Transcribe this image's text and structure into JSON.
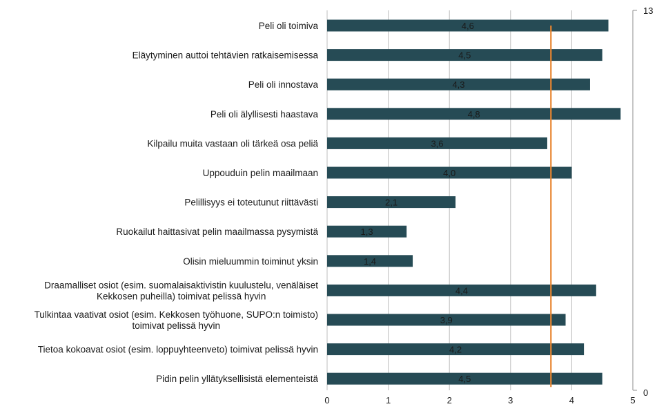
{
  "chart_data": {
    "type": "bar",
    "orientation": "horizontal",
    "categories": [
      [
        "Peli oli toimiva"
      ],
      [
        "Eläytyminen auttoi tehtävien ratkaisemisessa"
      ],
      [
        "Peli oli innostava"
      ],
      [
        "Peli oli älyllisesti haastava"
      ],
      [
        "Kilpailu muita vastaan oli tärkeä osa peliä"
      ],
      [
        "Uppouduin pelin maailmaan"
      ],
      [
        "Pelillisyys ei toteutunut riittävästi"
      ],
      [
        "Ruokailut haittasivat pelin maailmassa pysymistä"
      ],
      [
        "Olisin mieluummin toiminut yksin"
      ],
      [
        "Draamalliset osiot (esim. suomalaisaktivistin kuulustelu, venäläiset",
        "Kekkosen puheilla) toimivat pelissä hyvin"
      ],
      [
        "Tulkintaa vaativat osiot (esim. Kekkosen työhuone, SUPO:n toimisto)",
        "toimivat pelissä hyvin"
      ],
      [
        "Tietoa kokoavat osiot (esim. loppuyhteenveto) toimivat pelissä hyvin"
      ],
      [
        "Pidin pelin yllätyksellisistä elementeistä"
      ]
    ],
    "values": [
      4.6,
      4.5,
      4.3,
      4.8,
      3.6,
      4.0,
      2.1,
      1.3,
      1.4,
      4.4,
      3.9,
      4.2,
      4.5
    ],
    "value_labels": [
      "4,6",
      "4,5",
      "4,3",
      "4,8",
      "3,6",
      "4,0",
      "2,1",
      "1,3",
      "1,4",
      "4,4",
      "3,9",
      "4,2",
      "4,5"
    ],
    "xlim": [
      0,
      5
    ],
    "x_ticks": [
      "0",
      "1",
      "2",
      "3",
      "4",
      "5"
    ],
    "secondary_axis": {
      "min": 0,
      "max": 13,
      "ticks": [
        "0",
        "13"
      ]
    },
    "reference_line": {
      "value": 3.66,
      "color": "#e8852f"
    },
    "bar_color": "#264b55",
    "grid": true,
    "title": "",
    "xlabel": "",
    "ylabel": ""
  }
}
